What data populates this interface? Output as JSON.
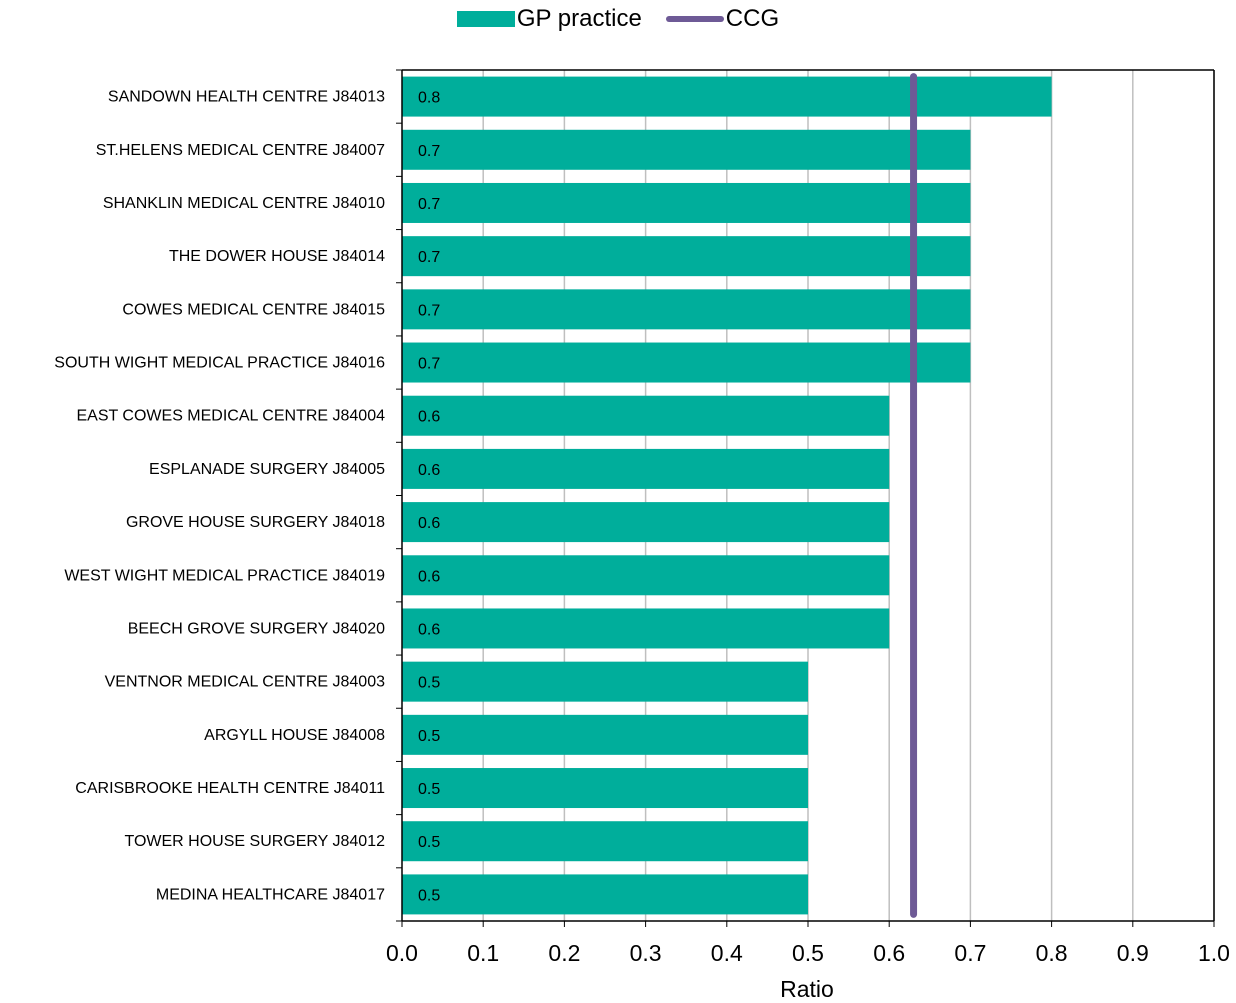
{
  "chart_data": {
    "type": "bar",
    "orientation": "horizontal",
    "title": "",
    "xlabel": "Ratio",
    "ylabel": "",
    "xlim": [
      0,
      1
    ],
    "x_ticks": [
      "0.0",
      "0.1",
      "0.2",
      "0.3",
      "0.4",
      "0.5",
      "0.6",
      "0.7",
      "0.8",
      "0.9",
      "1.0"
    ],
    "grid": "vertical",
    "legend_position": "top-center",
    "categories": [
      "SANDOWN HEALTH CENTRE J84013",
      "ST.HELENS MEDICAL CENTRE J84007",
      "SHANKLIN MEDICAL CENTRE J84010",
      "THE DOWER HOUSE J84014",
      "COWES MEDICAL CENTRE J84015",
      "SOUTH WIGHT MEDICAL PRACTICE J84016",
      "EAST COWES MEDICAL CENTRE J84004",
      "ESPLANADE SURGERY J84005",
      "GROVE HOUSE SURGERY J84018",
      "WEST WIGHT MEDICAL PRACTICE J84019",
      "BEECH GROVE SURGERY J84020",
      "VENTNOR MEDICAL CENTRE J84003",
      "ARGYLL HOUSE J84008",
      "CARISBROOKE HEALTH CENTRE J84011",
      "TOWER HOUSE SURGERY J84012",
      "MEDINA HEALTHCARE J84017"
    ],
    "series": [
      {
        "name": "GP practice",
        "kind": "bar",
        "color": "#00ae9b",
        "values": [
          0.8,
          0.7,
          0.7,
          0.7,
          0.7,
          0.7,
          0.6,
          0.6,
          0.6,
          0.6,
          0.6,
          0.5,
          0.5,
          0.5,
          0.5,
          0.5
        ],
        "labels": [
          "0.8",
          "0.7",
          "0.7",
          "0.7",
          "0.7",
          "0.7",
          "0.6",
          "0.6",
          "0.6",
          "0.6",
          "0.6",
          "0.5",
          "0.5",
          "0.5",
          "0.5",
          "0.5"
        ]
      },
      {
        "name": "CCG",
        "kind": "line",
        "color": "#6e5a96",
        "value": 0.63
      }
    ]
  },
  "colors": {
    "grid": "#bfbfbf",
    "axis": "#000000",
    "bar": "#00ae9b",
    "ccg_line": "#6e5a96"
  }
}
